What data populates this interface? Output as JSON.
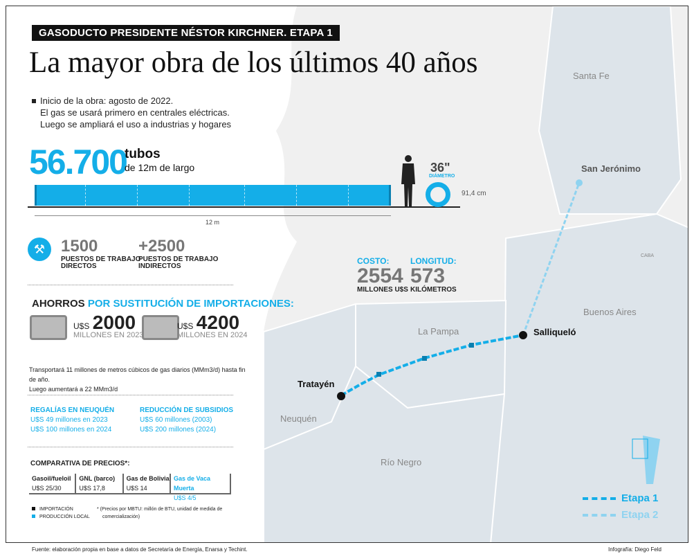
{
  "kicker": "GASODUCTO PRESIDENTE NÉSTOR KIRCHNER. ETAPA 1",
  "title": "La mayor obra de los últimos 40 años",
  "intro": [
    "Inicio de la obra: agosto de 2022.",
    "El gas se usará primero en centrales eléctricas.",
    "Luego se ampliará el uso a industrias y hogares"
  ],
  "tubes": {
    "count": "56.700",
    "label": "tubos",
    "sub": "de 12m de largo",
    "length": "12 m",
    "diameter": "36\"",
    "diameter_label": "DIÁMETRO",
    "height": "91,4 cm"
  },
  "jobs": [
    {
      "value": "1500",
      "label1": "PUESTOS DE TRABAJO",
      "label2": "DIRECTOS"
    },
    {
      "value": "+2500",
      "label1": "PUESTOS DE TRABAJO",
      "label2": "INDIRECTOS"
    }
  ],
  "cost": {
    "label": "COSTO:",
    "value": "2554",
    "unit": "MILLONES U$S"
  },
  "length": {
    "label": "LONGITUD:",
    "value": "573",
    "unit": "KILÓMETROS"
  },
  "savings": {
    "title_a": "AHORROS",
    "title_b": "POR SUSTITUCIÓN DE IMPORTACIONES:",
    "items": [
      {
        "cur": "U$S",
        "value": "2000",
        "sub": "MILLONES EN 2023"
      },
      {
        "cur": "U$S",
        "value": "4200",
        "sub": "MILLONES EN 2024"
      }
    ]
  },
  "transport": {
    "line1": "Transportará 11 millones de metros cúbicos de gas diarios (MMm3/d) hasta fin de año.",
    "line2": "Luego aumentará a 22 MMm3/d"
  },
  "royalties": {
    "title": "REGALÍAS EN NEUQUÉN",
    "l1": "U$S 49 millones en 2023",
    "l2": "U$S 100 millones en 2024"
  },
  "subsidies": {
    "title": "REDUCCIÓN DE SUBSIDIOS",
    "l1": "U$S 60 millones (2003)",
    "l2": "U$S 200 millones (2024)"
  },
  "prices": {
    "title": "COMPARATIVA DE PRECIOS*:",
    "cols": [
      {
        "name": "Gasoil/fueloil",
        "value": "U$S 25/30"
      },
      {
        "name": "GNL (barco)",
        "value": "U$S 17,8"
      },
      {
        "name": "Gas de Bolivia",
        "value": "U$S 14"
      },
      {
        "name": "Gas de Vaca Muerta",
        "value": "U$S 4/5"
      }
    ],
    "legend": [
      "IMPORTACIÓN",
      "PRODUCCIÓN LOCAL"
    ],
    "note1": "* (Precios por MBTU: millón de BTU, unidad de medida de",
    "note2": "comercialización)"
  },
  "map": {
    "provinces": [
      "Santa Fe",
      "Buenos Aires",
      "La Pampa",
      "Neuquén",
      "Río Negro"
    ],
    "caba": "CABA",
    "cities": [
      "San Jerónimo",
      "Salliqueló",
      "Tratayén"
    ],
    "legend": [
      "Etapa 1",
      "Etapa 2"
    ]
  },
  "colors": {
    "accent": "#14aee8",
    "etapa2": "#8fd3f0"
  },
  "footer": {
    "source": "Fuente: elaboración propia en base a datos de Secretaría de Energía, Enarsa y Techint.",
    "credit": "Infografía: Diego Feld"
  }
}
